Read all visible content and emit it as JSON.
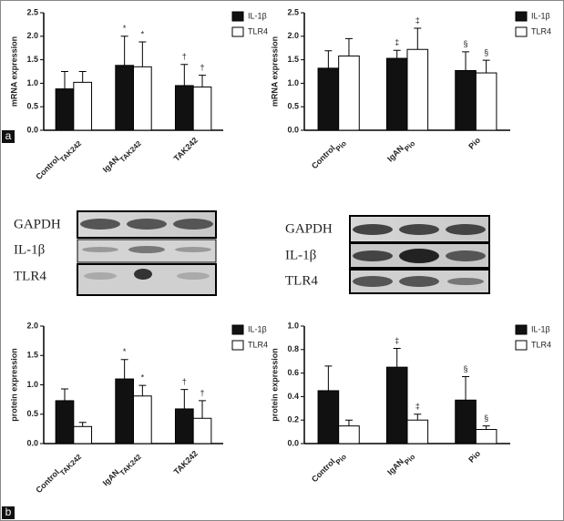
{
  "chart_data": [
    {
      "type": "bar",
      "ylabel": "mRNA expression",
      "categories": [
        "Control",
        "IgAN",
        "TAK242"
      ],
      "category_subscripts": [
        "TAK242",
        "TAK242",
        null
      ],
      "series": [
        {
          "name": "IL-1β",
          "color": "#111111",
          "values": [
            0.88,
            1.38,
            0.95
          ],
          "errors": [
            0.37,
            0.62,
            0.45
          ],
          "annotations": [
            null,
            "*",
            "†"
          ]
        },
        {
          "name": "TLR4",
          "color": "#ffffff",
          "values": [
            1.02,
            1.35,
            0.92
          ],
          "errors": [
            0.23,
            0.53,
            0.25
          ],
          "annotations": [
            null,
            "*",
            "†"
          ]
        }
      ],
      "ylim": [
        0,
        2.5
      ],
      "yticks": [
        {
          "value": 0,
          "label": "0.0"
        },
        0.5,
        {
          "value": 1,
          "label": "1.0"
        },
        1.5,
        {
          "value": 2,
          "label": "2.0"
        },
        2.5
      ]
    },
    {
      "type": "bar",
      "ylabel": "mRNA expression",
      "categories": [
        "Control",
        "IgAN",
        "Pio"
      ],
      "category_subscripts": [
        "Pio",
        "Pio",
        null
      ],
      "series": [
        {
          "name": "IL-1β",
          "color": "#111111",
          "values": [
            1.32,
            1.53,
            1.27
          ],
          "errors": [
            0.37,
            0.17,
            0.4
          ],
          "annotations": [
            null,
            "‡",
            "§"
          ]
        },
        {
          "name": "TLR4",
          "color": "#ffffff",
          "values": [
            1.58,
            1.72,
            1.22
          ],
          "errors": [
            0.37,
            0.45,
            0.27
          ],
          "annotations": [
            null,
            "‡",
            "§"
          ]
        }
      ],
      "ylim": [
        0,
        2.5
      ],
      "yticks": [
        {
          "value": 0,
          "label": "0.0"
        },
        0.5,
        {
          "value": 1,
          "label": "1.0"
        },
        1.5,
        {
          "value": 2,
          "label": "2.0"
        },
        2.5
      ]
    },
    {
      "type": "bar",
      "ylabel": "protein expression",
      "categories": [
        "Control",
        "IgAN",
        "TAK242"
      ],
      "category_subscripts": [
        "TAK242",
        "TAK242",
        null
      ],
      "series": [
        {
          "name": "IL-1β",
          "color": "#111111",
          "values": [
            0.73,
            1.1,
            0.59
          ],
          "errors": [
            0.2,
            0.33,
            0.33
          ],
          "annotations": [
            null,
            "*",
            "†"
          ]
        },
        {
          "name": "TLR4",
          "color": "#ffffff",
          "values": [
            0.29,
            0.81,
            0.43
          ],
          "errors": [
            0.07,
            0.18,
            0.3
          ],
          "annotations": [
            null,
            "*",
            "†"
          ]
        }
      ],
      "ylim": [
        0,
        2
      ],
      "yticks": [
        {
          "value": 0,
          "label": "0.0"
        },
        0.5,
        {
          "value": 1,
          "label": "1.0"
        },
        1.5,
        {
          "value": 2,
          "label": "2.0"
        }
      ]
    },
    {
      "type": "bar",
      "ylabel": "protein expression",
      "categories": [
        "Control",
        "IgAN",
        "Pio"
      ],
      "category_subscripts": [
        "Pio",
        "Pio",
        null
      ],
      "series": [
        {
          "name": "IL-1β",
          "color": "#111111",
          "values": [
            0.45,
            0.65,
            0.37
          ],
          "errors": [
            0.21,
            0.16,
            0.2
          ],
          "annotations": [
            null,
            "‡",
            "§"
          ]
        },
        {
          "name": "TLR4",
          "color": "#ffffff",
          "values": [
            0.15,
            0.2,
            0.12
          ],
          "errors": [
            0.05,
            0.05,
            0.03
          ],
          "annotations": [
            null,
            "‡",
            "§"
          ]
        }
      ],
      "ylim": [
        0,
        1
      ],
      "yticks": [
        {
          "value": 0,
          "label": "0.0"
        },
        0.2,
        0.4,
        0.6,
        0.8,
        {
          "value": 1,
          "label": "1.0"
        }
      ]
    }
  ],
  "blots": [
    {
      "rows": [
        "GAPDH",
        "IL-1β",
        "TLR4"
      ]
    },
    {
      "rows": [
        "GAPDH",
        "IL-1β",
        "TLR4"
      ]
    }
  ],
  "panel_labels": [
    "a",
    "b"
  ]
}
